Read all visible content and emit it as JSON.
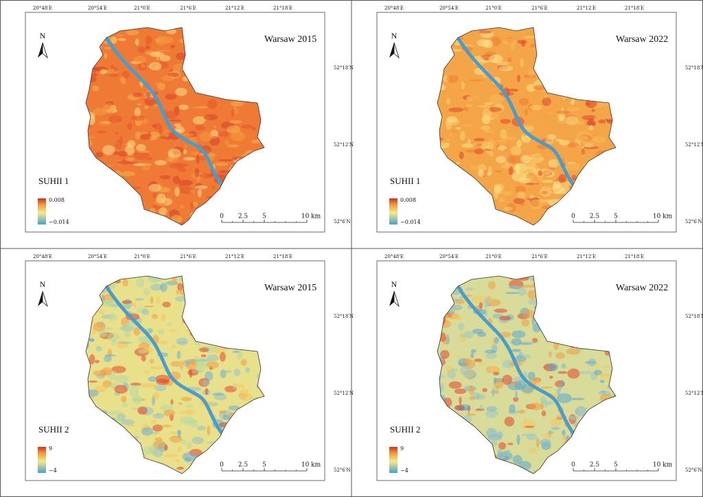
{
  "panels": [
    {
      "title": "Warsaw 2015",
      "index_label": "SUHII 1",
      "legend_max": "0.008",
      "legend_min": "−0.014"
    },
    {
      "title": "Warsaw 2022",
      "index_label": "SUHII 1",
      "legend_max": "0.008",
      "legend_min": "−0.014"
    },
    {
      "title": "Warsaw 2015",
      "index_label": "SUHII 2",
      "legend_max": "9",
      "legend_min": "−4"
    },
    {
      "title": "Warsaw 2022",
      "index_label": "SUHII 2",
      "legend_max": "9",
      "legend_min": "−4"
    }
  ],
  "lon_labels": [
    "20°48′E",
    "20°54′E",
    "21°0′E",
    "21°6′E",
    "21°12′E",
    "21°18′E"
  ],
  "lat_labels": [
    "52°18′N",
    "52°12′N",
    "52°6′N"
  ],
  "north": "N",
  "scale_labels": [
    "0",
    "2.5",
    "5",
    "10 km"
  ]
}
